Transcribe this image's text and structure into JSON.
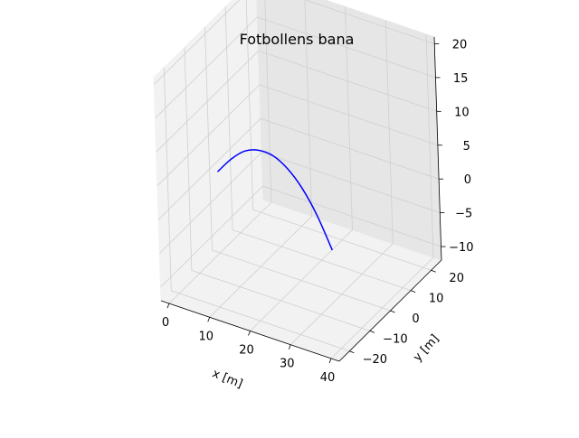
{
  "chart_data": {
    "type": "line3d",
    "title": "Fotbollens bana",
    "xlabel": "x [m]",
    "ylabel": "y [m]",
    "zlabel": "",
    "xlim": [
      -2,
      42
    ],
    "ylim": [
      -25,
      25
    ],
    "zlim": [
      -12,
      21
    ],
    "xticks": [
      0,
      10,
      20,
      30,
      40
    ],
    "yticks": [
      -20,
      -10,
      0,
      10,
      20
    ],
    "zticks": [
      -10,
      -5,
      0,
      5,
      10,
      15,
      20
    ],
    "xtick_labels": [
      "0",
      "10",
      "20",
      "30",
      "40"
    ],
    "ytick_labels": [
      "−20",
      "−10",
      "0",
      "10",
      "20"
    ],
    "ztick_labels": [
      "−10",
      "−5",
      "0",
      "5",
      "10",
      "15",
      "20"
    ],
    "grid": true,
    "series": [
      {
        "color": "#0000ff",
        "x": [
          0,
          3.5,
          7,
          10.5,
          14,
          17.5,
          21,
          24.5,
          28
        ],
        "y": [
          0,
          0,
          0,
          0,
          0,
          0,
          0,
          0,
          0
        ],
        "z": [
          0,
          2.6,
          4.5,
          5.3,
          5.2,
          4.0,
          1.8,
          -1.5,
          -5.9
        ]
      }
    ]
  }
}
